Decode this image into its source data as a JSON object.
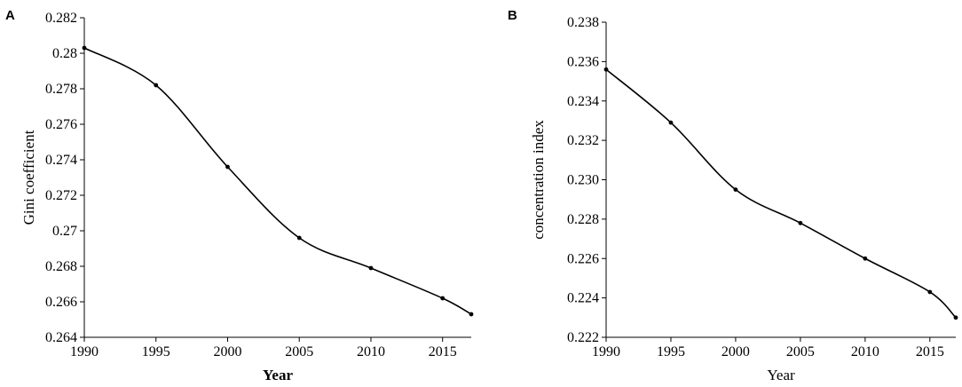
{
  "chart_data": [
    {
      "type": "line",
      "panel_label": "A",
      "title": "",
      "xlabel": "Year",
      "ylabel": "Gini coefficient",
      "xlabel_bold": true,
      "x": [
        1990,
        1995,
        2000,
        2005,
        2010,
        2015,
        2017
      ],
      "series": [
        {
          "values": [
            0.2803,
            0.2782,
            0.2736,
            0.2696,
            0.2679,
            0.2662,
            0.2653
          ]
        }
      ],
      "xlim": [
        1990,
        2017
      ],
      "ylim": [
        0.264,
        0.282
      ],
      "xticks": [
        1990,
        1995,
        2000,
        2005,
        2010,
        2015
      ],
      "xtick_labels": [
        "1990",
        "1995",
        "2000",
        "2005",
        "2010",
        "2015"
      ],
      "yticks": [
        0.264,
        0.266,
        0.268,
        0.27,
        0.272,
        0.274,
        0.276,
        0.278,
        0.28,
        0.282
      ],
      "ytick_labels": [
        "0.264",
        "0.266",
        "0.268",
        "0.27",
        "0.272",
        "0.274",
        "0.276",
        "0.278",
        "0.28",
        "0.282"
      ],
      "grid": false,
      "smooth": true,
      "markers": true
    },
    {
      "type": "line",
      "panel_label": "B",
      "title": "",
      "xlabel": "Year",
      "ylabel": "concentration index",
      "xlabel_bold": false,
      "x": [
        1990,
        1995,
        2000,
        2005,
        2010,
        2015,
        2017
      ],
      "series": [
        {
          "values": [
            0.2356,
            0.2329,
            0.2295,
            0.2278,
            0.226,
            0.2243,
            0.223
          ]
        }
      ],
      "xlim": [
        1990,
        2017
      ],
      "ylim": [
        0.222,
        0.238
      ],
      "xticks": [
        1990,
        1995,
        2000,
        2005,
        2010,
        2015
      ],
      "xtick_labels": [
        "1990",
        "1995",
        "2000",
        "2005",
        "2010",
        "2015"
      ],
      "yticks": [
        0.222,
        0.224,
        0.226,
        0.228,
        0.23,
        0.232,
        0.234,
        0.236,
        0.238
      ],
      "ytick_labels": [
        "0.222",
        "0.224",
        "0.226",
        "0.228",
        "0.230",
        "0.232",
        "0.234",
        "0.236",
        "0.238"
      ],
      "grid": false,
      "smooth": true,
      "markers": true
    }
  ]
}
